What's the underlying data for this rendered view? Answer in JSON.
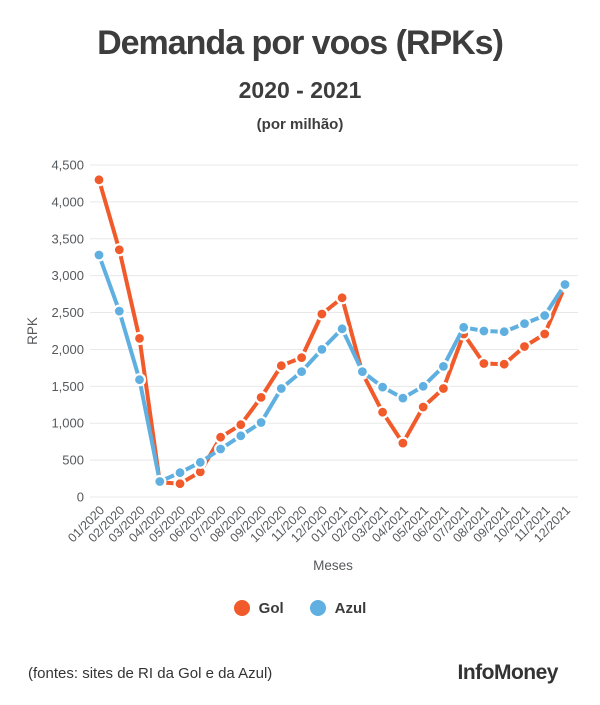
{
  "chart_data": {
    "type": "line",
    "title": "Demanda por voos (RPKs)",
    "subtitle": "2020 - 2021",
    "note": "(por milhão)",
    "xlabel": "Meses",
    "ylabel": "RPK",
    "ylim": [
      0,
      4500
    ],
    "ytick_step": 500,
    "grid": true,
    "legend_position": "bottom",
    "categories": [
      "01/2020",
      "02/2020",
      "03/2020",
      "04/2020",
      "05/2020",
      "06/2020",
      "07/2020",
      "08/2020",
      "09/2020",
      "10/2020",
      "11/2020",
      "12/2020",
      "01/2021",
      "02/2021",
      "03/2021",
      "04/2021",
      "05/2021",
      "06/2021",
      "07/2021",
      "08/2021",
      "09/2021",
      "10/2021",
      "11/2021",
      "12/2021"
    ],
    "series": [
      {
        "name": "Gol",
        "color": "#f15b2b",
        "values": [
          4300,
          3350,
          2150,
          200,
          180,
          340,
          810,
          980,
          1350,
          1780,
          1890,
          2480,
          2700,
          1680,
          1150,
          730,
          1220,
          1470,
          2210,
          1810,
          1800,
          2040,
          2210,
          2860
        ]
      },
      {
        "name": "Azul",
        "color": "#5fb0e0",
        "values": [
          3280,
          2520,
          1590,
          210,
          330,
          470,
          650,
          830,
          1010,
          1470,
          1700,
          2000,
          2280,
          1700,
          1490,
          1340,
          1500,
          1770,
          2300,
          2250,
          2240,
          2350,
          2460,
          2880
        ]
      }
    ]
  },
  "footer": {
    "source": "(fontes: sites de RI da Gol e da Azul)",
    "brand": "InfoMoney"
  }
}
